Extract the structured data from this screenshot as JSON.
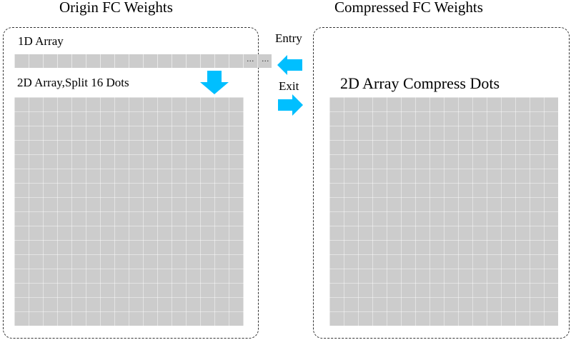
{
  "titles": {
    "origin": "Origin FC Weights",
    "compressed": "Compressed FC Weights"
  },
  "labels": {
    "array_1d": "1D Array",
    "array_2d": "2D Array,Split 16 Dots",
    "compress_dots": "2D Array Compress Dots",
    "entry": "Entry",
    "exit": "Exit"
  },
  "ellipsis": [
    "...",
    "..."
  ],
  "colors": {
    "arrow": "#00BFFF",
    "cell": "#CCCCCC",
    "panel_border": "#333333"
  },
  "icons": {
    "down": "arrow-down-icon",
    "entry": "arrow-left-icon",
    "exit": "arrow-right-icon"
  }
}
